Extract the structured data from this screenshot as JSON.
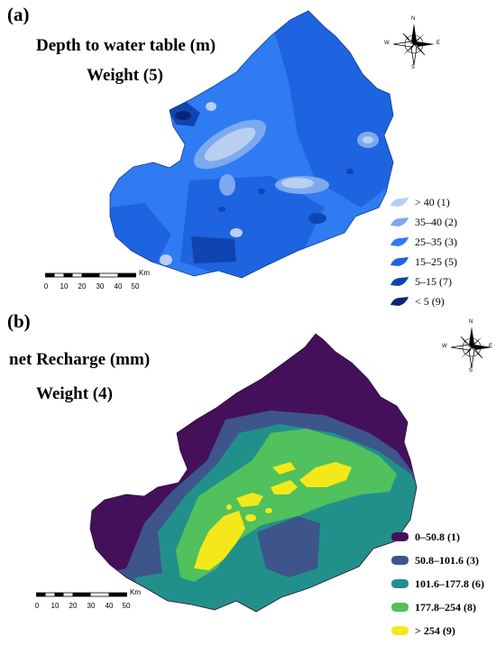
{
  "panel_a": {
    "letter": "(a)",
    "title": "Depth to water table (m)",
    "weight": "Weight (5)",
    "legend": [
      {
        "label": "> 40 (1)",
        "color": "#b9cff2"
      },
      {
        "label": "35–40 (2)",
        "color": "#7ea9ee"
      },
      {
        "label": "25–35 (3)",
        "color": "#2f7cf2"
      },
      {
        "label": "15–25 (5)",
        "color": "#1e63e0"
      },
      {
        "label": "5–15 (7)",
        "color": "#1044b0"
      },
      {
        "label": "< 5 (9)",
        "color": "#0a2578"
      }
    ],
    "scale": {
      "ticks": [
        "0",
        "10",
        "20",
        "30",
        "40",
        "50"
      ],
      "unit": "Km"
    },
    "compass": {
      "n": "N",
      "s": "S",
      "e": "E",
      "w": "W"
    }
  },
  "panel_b": {
    "letter": "(b)",
    "title": "net Recharge (mm)",
    "weight": "Weight (4)",
    "legend": [
      {
        "label": "0–50.8 (1)",
        "color": "#44105a"
      },
      {
        "label": "50.8–101.6 (3)",
        "color": "#3d558a"
      },
      {
        "label": "101.6–177.8 (6)",
        "color": "#22908a"
      },
      {
        "label": "177.8–254 (8)",
        "color": "#50c15c"
      },
      {
        "label": "> 254 (9)",
        "color": "#f4e81a"
      }
    ],
    "scale": {
      "ticks": [
        "0",
        "10",
        "20",
        "30",
        "40",
        "50"
      ],
      "unit": "Km"
    },
    "compass": {
      "n": "N",
      "s": "S",
      "e": "E",
      "w": "W"
    }
  }
}
